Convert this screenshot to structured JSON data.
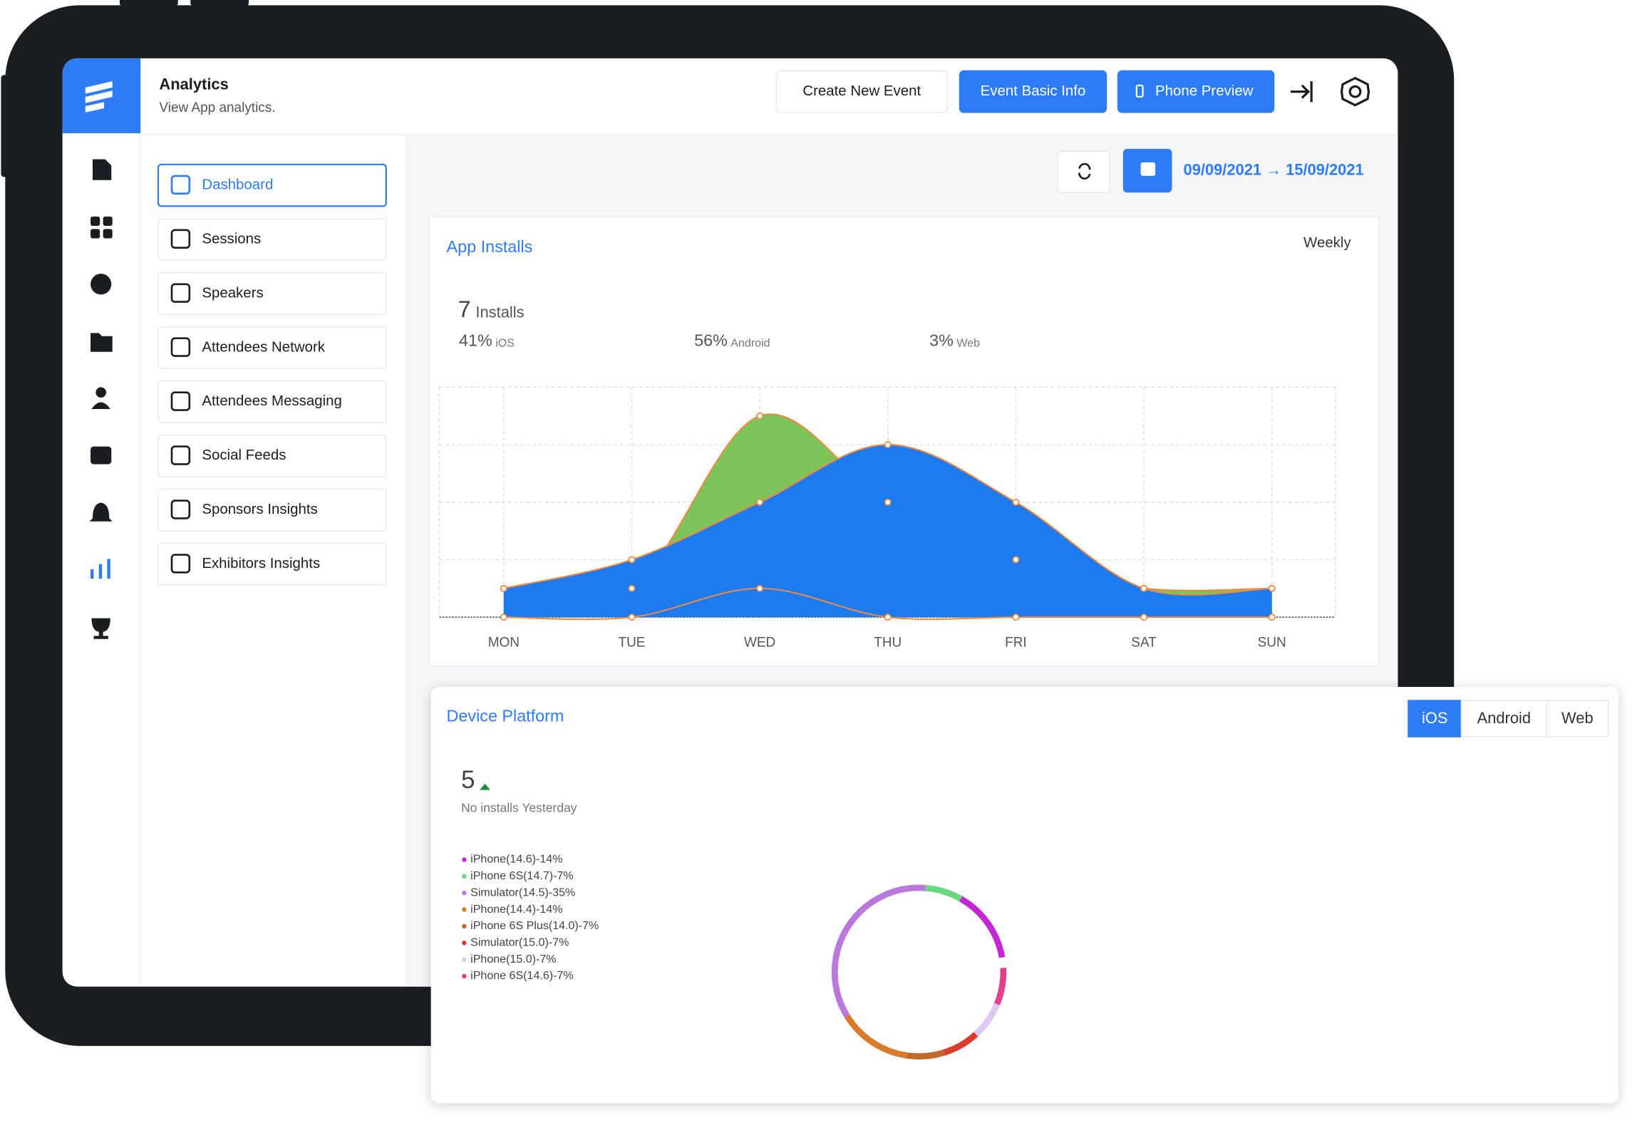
{
  "header": {
    "title": "Analytics",
    "subtitle": "View App analytics.",
    "buttons": [
      "Create New Event",
      "Event Basic Info",
      "Phone Preview"
    ]
  },
  "nav": [
    "Dashboard",
    "Sessions",
    "Speakers",
    "Attendees Network",
    "Attendees Messaging",
    "Social Feeds",
    "Sponsors Insights",
    "Exhibitors Insights"
  ],
  "nav_active": 0,
  "date_range": "09/09/2021 → 15/09/2021",
  "app_installs": {
    "title": "App Installs",
    "period": "Weekly",
    "total": "7",
    "total_label": "Installs",
    "breakdown": [
      {
        "value": "41%",
        "label": "iOS"
      },
      {
        "value": "56%",
        "label": "Android"
      },
      {
        "value": "3%",
        "label": "Web"
      }
    ],
    "chart_data": {
      "type": "area",
      "categories": [
        "MON",
        "TUE",
        "WED",
        "THU",
        "FRI",
        "SAT",
        "SUN"
      ],
      "series": [
        {
          "color": "#7dc45a",
          "area": true,
          "values": [
            0.5,
            0.5,
            3.5,
            2,
            1,
            0.5,
            0.5
          ]
        },
        {
          "color": "#1e7bef",
          "area": true,
          "values": [
            0.5,
            1,
            2,
            3,
            2,
            0.5,
            0.5
          ]
        },
        {
          "color": "#f0883e",
          "area": false,
          "values": [
            0,
            0,
            0.5,
            0,
            0,
            0,
            0
          ]
        }
      ],
      "line_color": "#f0883e",
      "ylim": [
        0,
        4
      ],
      "ygrid": [
        0,
        1,
        2,
        3,
        4
      ],
      "grid": true
    }
  },
  "device_platform": {
    "title": "Device Platform",
    "tabs": [
      "iOS",
      "Android",
      "Web"
    ],
    "active_tab": 0,
    "count": "5",
    "note": "No installs Yesterday",
    "chart_data": {
      "type": "donut",
      "categories": [
        "iPhone(14.6)-14%",
        "iPhone 6S(14.7)-7%",
        "Simulator(14.5)-35%",
        "iPhone(14.4)-14%",
        "iPhone 6S Plus(14.0)-7%",
        "Simulator(15.0)-7%",
        "iPhone(15.0)-7%",
        "iPhone 6S(14.6)-7%"
      ],
      "values": [
        14,
        7,
        35,
        14,
        7,
        7,
        7,
        7
      ],
      "colors": [
        "#c427d6",
        "#6bd77f",
        "#b878dc",
        "#d97b2a",
        "#c5662a",
        "#dc3a2a",
        "#dcc8f2",
        "#e0418a"
      ]
    }
  }
}
